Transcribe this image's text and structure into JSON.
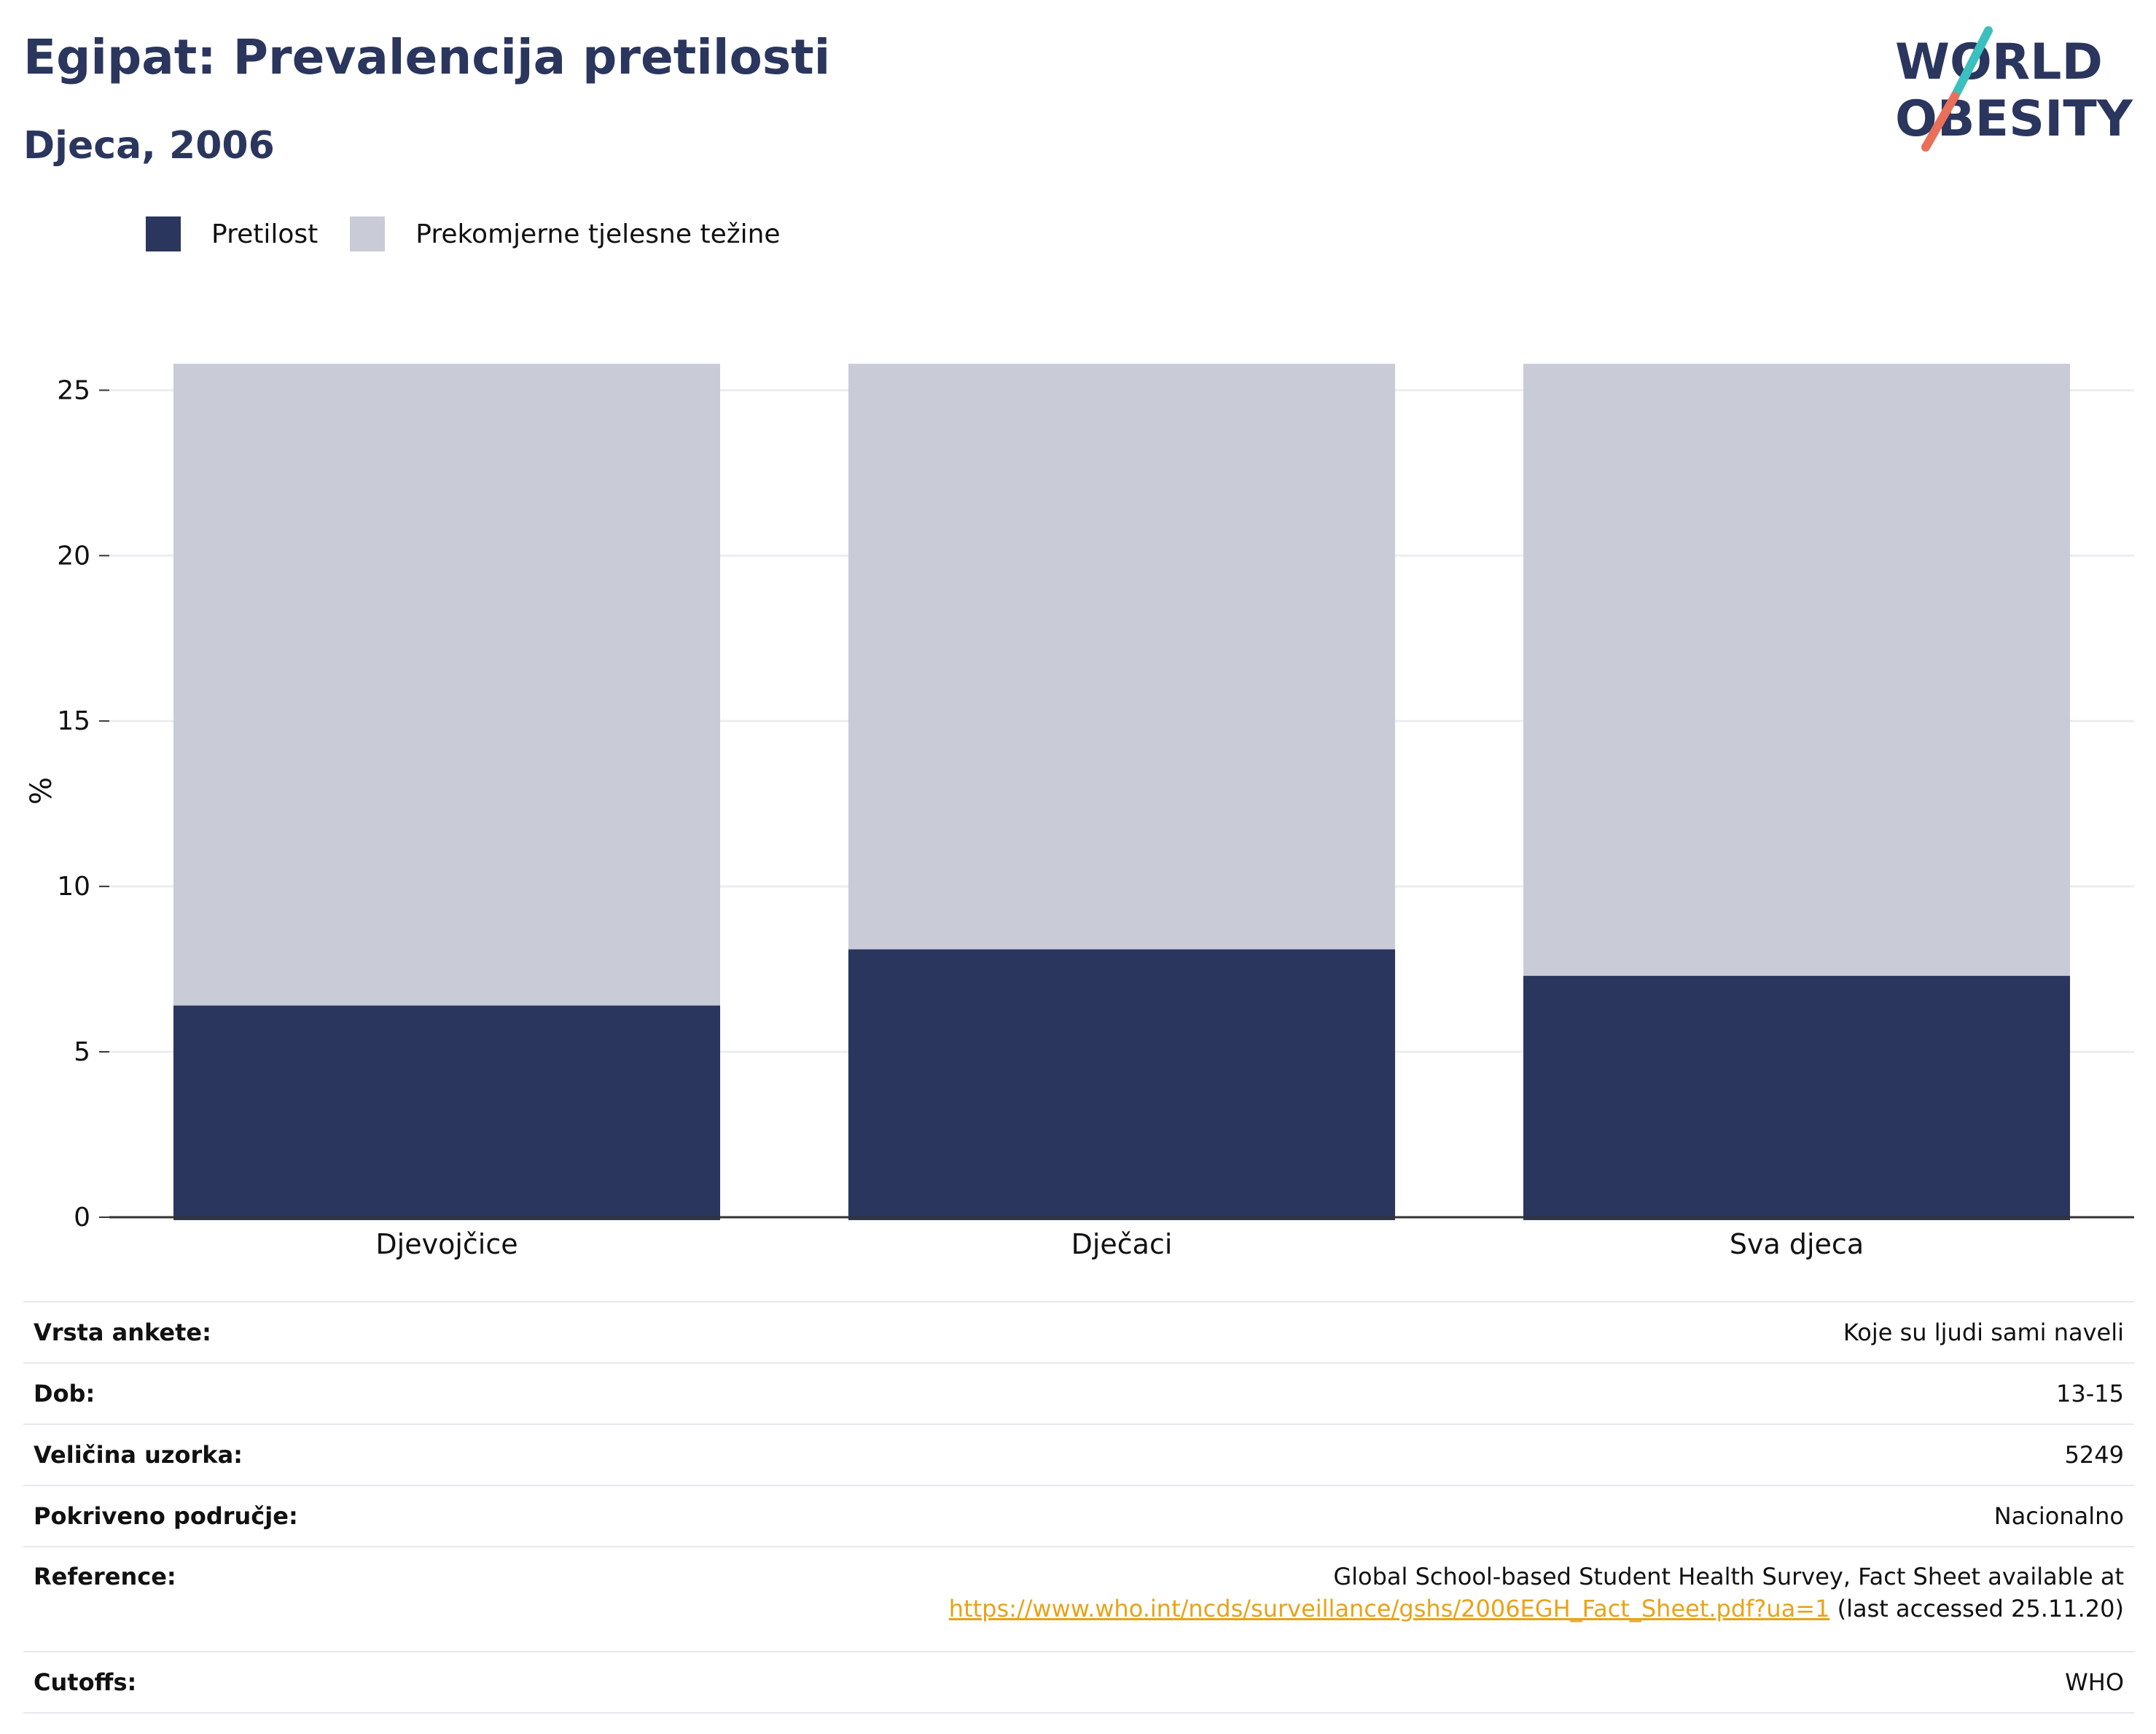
{
  "header": {
    "title": "Egipat: Prevalencija pretilosti",
    "subtitle": "Djeca, 2006"
  },
  "logo": {
    "line1": "WORLD",
    "line2": "OBESITY",
    "colors": {
      "text": "#2b365e",
      "accent_teal": "#3bbfbf",
      "accent_coral": "#e8705a"
    }
  },
  "legend": {
    "items": [
      {
        "label": "Pretilost",
        "color": "#2b365e"
      },
      {
        "label": "Prekomjerne tjelesne težine",
        "color": "#c9ccd7"
      }
    ]
  },
  "chart_data": {
    "type": "bar",
    "stacked": true,
    "categories": [
      "Djevojčice",
      "Dječaci",
      "Sva djeca"
    ],
    "series": [
      {
        "name": "Pretilost",
        "color": "#2b365e",
        "values": [
          6.4,
          8.1,
          7.3
        ]
      },
      {
        "name": "Prekomjerne tjelesne težine",
        "color": "#c9ccd7",
        "values": [
          19.4,
          17.7,
          18.5
        ]
      }
    ],
    "ylabel": "%",
    "xlabel": "",
    "ylim": [
      0,
      26
    ],
    "yticks": [
      0,
      5,
      10,
      15,
      20,
      25
    ],
    "grid": true,
    "legend_position": "top-left"
  },
  "info_table": {
    "rows": [
      {
        "key": "Vrsta ankete:",
        "value": "Koje su ljudi sami naveli"
      },
      {
        "key": "Dob:",
        "value": "13-15"
      },
      {
        "key": "Veličina uzorka:",
        "value": "5249"
      },
      {
        "key": "Pokriveno područje:",
        "value": "Nacionalno"
      }
    ],
    "reference": {
      "key": "Reference:",
      "line1": "Global School-based Student Health Survey, Fact Sheet available at",
      "link": "https://www.who.int/ncds/surveillance/gshs/2006EGH_Fact_Sheet.pdf?ua=1",
      "suffix": " (last accessed 25.11.20)"
    },
    "cutoffs": {
      "key": "Cutoffs:",
      "value": "WHO"
    }
  }
}
